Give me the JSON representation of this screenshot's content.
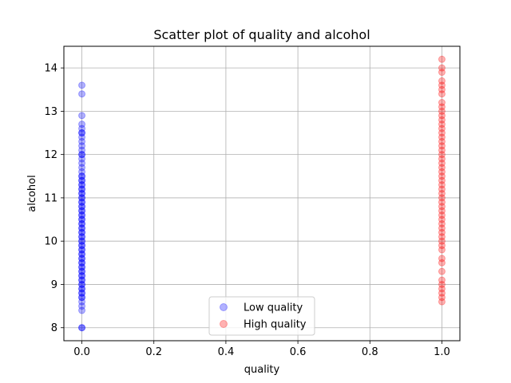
{
  "chart_data": {
    "type": "scatter",
    "title": "Scatter plot of quality and alcohol",
    "xlabel": "quality",
    "ylabel": "alcohol",
    "xlim": [
      -0.05,
      1.05
    ],
    "ylim": [
      7.7,
      14.5
    ],
    "xticks": [
      0.0,
      0.2,
      0.4,
      0.6,
      0.8,
      1.0
    ],
    "xtick_labels": [
      "0.0",
      "0.2",
      "0.4",
      "0.6",
      "0.8",
      "1.0"
    ],
    "yticks": [
      8,
      9,
      10,
      11,
      12,
      13,
      14
    ],
    "ytick_labels": [
      "8",
      "9",
      "10",
      "11",
      "12",
      "13",
      "14"
    ],
    "grid": true,
    "legend_position": "lower-center",
    "series": [
      {
        "name": "Low quality",
        "color": "#0000ff",
        "x": 0,
        "y": [
          8.0,
          8.0,
          8.4,
          8.5,
          8.6,
          8.7,
          8.7,
          8.8,
          8.8,
          8.9,
          8.9,
          9.0,
          9.0,
          9.1,
          9.1,
          9.2,
          9.2,
          9.3,
          9.3,
          9.4,
          9.4,
          9.5,
          9.5,
          9.6,
          9.6,
          9.7,
          9.7,
          9.8,
          9.8,
          9.9,
          9.9,
          10.0,
          10.0,
          10.1,
          10.1,
          10.2,
          10.2,
          10.3,
          10.3,
          10.4,
          10.4,
          10.5,
          10.5,
          10.6,
          10.6,
          10.7,
          10.7,
          10.8,
          10.8,
          10.9,
          10.9,
          11.0,
          11.0,
          11.1,
          11.1,
          11.2,
          11.2,
          11.3,
          11.3,
          11.4,
          11.4,
          11.5,
          11.5,
          11.6,
          11.7,
          11.8,
          11.9,
          12.0,
          12.0,
          12.1,
          12.2,
          12.3,
          12.4,
          12.5,
          12.5,
          12.6,
          12.7,
          12.9,
          13.4,
          13.6
        ]
      },
      {
        "name": "High quality",
        "color": "#ff0000",
        "x": 1,
        "y": [
          8.6,
          8.7,
          8.8,
          8.9,
          9.0,
          9.1,
          9.3,
          9.5,
          9.6,
          9.8,
          9.9,
          10.0,
          10.1,
          10.2,
          10.3,
          10.4,
          10.5,
          10.6,
          10.7,
          10.8,
          10.9,
          11.0,
          11.1,
          11.2,
          11.3,
          11.4,
          11.5,
          11.6,
          11.7,
          11.8,
          11.9,
          12.0,
          12.1,
          12.2,
          12.3,
          12.4,
          12.5,
          12.6,
          12.7,
          12.8,
          12.9,
          13.0,
          13.1,
          13.2,
          13.4,
          13.5,
          13.6,
          13.7,
          13.9,
          14.0,
          14.2
        ]
      }
    ]
  }
}
